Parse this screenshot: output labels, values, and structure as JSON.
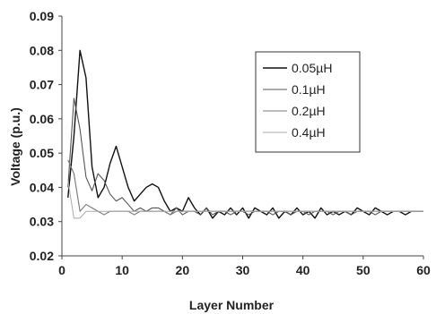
{
  "chart_data": {
    "type": "line",
    "xlabel": "Layer Number",
    "ylabel": "Voltage (p.u.)",
    "xlim": [
      0,
      60
    ],
    "ylim": [
      0.02,
      0.09
    ],
    "xticks": [
      "0",
      "10",
      "20",
      "30",
      "40",
      "50",
      "60"
    ],
    "yticks": [
      "0.02",
      "0.03",
      "0.04",
      "0.05",
      "0.06",
      "0.07",
      "0.08",
      "0.09"
    ],
    "grid": false,
    "legend_position": "top-right",
    "series": [
      {
        "name": "0.05µH",
        "color": "#111111",
        "x": [
          1,
          2,
          3,
          4,
          5,
          6,
          7,
          8,
          9,
          10,
          11,
          12,
          13,
          14,
          15,
          16,
          17,
          18,
          19,
          20,
          21,
          22,
          23,
          24,
          25,
          26,
          27,
          28,
          29,
          30,
          31,
          32,
          33,
          34,
          35,
          36,
          37,
          38,
          39,
          40,
          41,
          42,
          43,
          44,
          45,
          46,
          47,
          48,
          49,
          50,
          51,
          52,
          53,
          54,
          55,
          56,
          57,
          58,
          59,
          60
        ],
        "values": [
          0.037,
          0.055,
          0.08,
          0.072,
          0.046,
          0.037,
          0.04,
          0.047,
          0.052,
          0.046,
          0.04,
          0.036,
          0.038,
          0.04,
          0.041,
          0.04,
          0.036,
          0.033,
          0.034,
          0.033,
          0.037,
          0.034,
          0.032,
          0.034,
          0.031,
          0.033,
          0.032,
          0.034,
          0.032,
          0.034,
          0.031,
          0.034,
          0.033,
          0.032,
          0.034,
          0.031,
          0.033,
          0.032,
          0.034,
          0.032,
          0.033,
          0.031,
          0.034,
          0.032,
          0.033,
          0.032,
          0.033,
          0.032,
          0.034,
          0.033,
          0.032,
          0.034,
          0.033,
          0.032,
          0.033,
          0.033,
          0.032,
          0.033,
          0.033,
          0.033
        ]
      },
      {
        "name": "0.1µH",
        "color": "#555555",
        "x": [
          1,
          2,
          3,
          4,
          5,
          6,
          7,
          8,
          9,
          10,
          11,
          12,
          13,
          14,
          15,
          16,
          17,
          18,
          19,
          20,
          21,
          22,
          23,
          24,
          25,
          26,
          27,
          28,
          29,
          30,
          31,
          32,
          33,
          34,
          35,
          36,
          37,
          38,
          39,
          40,
          41,
          42,
          43,
          44,
          45,
          46,
          47,
          48,
          49,
          50,
          51,
          52,
          53,
          54,
          55,
          56,
          57,
          58,
          59,
          60
        ],
        "values": [
          0.04,
          0.066,
          0.057,
          0.043,
          0.039,
          0.044,
          0.042,
          0.038,
          0.036,
          0.037,
          0.035,
          0.033,
          0.034,
          0.033,
          0.034,
          0.034,
          0.033,
          0.032,
          0.034,
          0.032,
          0.033,
          0.033,
          0.032,
          0.034,
          0.032,
          0.033,
          0.033,
          0.032,
          0.033,
          0.033,
          0.032,
          0.033,
          0.033,
          0.033,
          0.032,
          0.033,
          0.033,
          0.032,
          0.033,
          0.033,
          0.032,
          0.033,
          0.033,
          0.033,
          0.032,
          0.033,
          0.033,
          0.032,
          0.033,
          0.033,
          0.033,
          0.032,
          0.033,
          0.033,
          0.033,
          0.033,
          0.033,
          0.033,
          0.033,
          0.033
        ]
      },
      {
        "name": "0.2µH",
        "color": "#777777",
        "x": [
          1,
          2,
          3,
          4,
          5,
          6,
          7,
          8,
          9,
          10,
          11,
          12,
          13,
          14,
          15,
          16,
          17,
          18,
          19,
          20,
          21,
          22,
          23,
          24,
          25,
          26,
          27,
          28,
          29,
          30,
          31,
          32,
          33,
          34,
          35,
          36,
          37,
          38,
          39,
          40,
          41,
          42,
          43,
          44,
          45,
          46,
          47,
          48,
          49,
          50,
          51,
          52,
          53,
          54,
          55,
          56,
          57,
          58,
          59,
          60
        ],
        "values": [
          0.048,
          0.044,
          0.033,
          0.035,
          0.034,
          0.033,
          0.032,
          0.033,
          0.033,
          0.033,
          0.033,
          0.032,
          0.033,
          0.033,
          0.033,
          0.033,
          0.033,
          0.032,
          0.033,
          0.033,
          0.033,
          0.033,
          0.033,
          0.033,
          0.033,
          0.033,
          0.033,
          0.033,
          0.033,
          0.033,
          0.033,
          0.033,
          0.033,
          0.033,
          0.033,
          0.033,
          0.033,
          0.033,
          0.033,
          0.033,
          0.033,
          0.033,
          0.033,
          0.033,
          0.033,
          0.033,
          0.033,
          0.033,
          0.033,
          0.033,
          0.033,
          0.033,
          0.033,
          0.033,
          0.033,
          0.033,
          0.033,
          0.033,
          0.033,
          0.033
        ]
      },
      {
        "name": "0.4µH",
        "color": "#aaaaaa",
        "x": [
          1,
          2,
          3,
          4,
          5,
          6,
          7,
          8,
          9,
          10,
          11,
          12,
          13,
          14,
          15,
          16,
          17,
          18,
          19,
          20,
          21,
          22,
          23,
          24,
          25,
          26,
          27,
          28,
          29,
          30,
          31,
          32,
          33,
          34,
          35,
          36,
          37,
          38,
          39,
          40,
          41,
          42,
          43,
          44,
          45,
          46,
          47,
          48,
          49,
          50,
          51,
          52,
          53,
          54,
          55,
          56,
          57,
          58,
          59,
          60
        ],
        "values": [
          0.042,
          0.031,
          0.031,
          0.033,
          0.033,
          0.033,
          0.033,
          0.033,
          0.033,
          0.033,
          0.033,
          0.033,
          0.033,
          0.033,
          0.033,
          0.033,
          0.033,
          0.033,
          0.033,
          0.033,
          0.033,
          0.033,
          0.033,
          0.033,
          0.033,
          0.033,
          0.033,
          0.033,
          0.033,
          0.033,
          0.033,
          0.033,
          0.033,
          0.033,
          0.033,
          0.033,
          0.033,
          0.033,
          0.033,
          0.033,
          0.033,
          0.033,
          0.033,
          0.033,
          0.033,
          0.033,
          0.033,
          0.033,
          0.033,
          0.033,
          0.033,
          0.033,
          0.033,
          0.033,
          0.033,
          0.033,
          0.033,
          0.033,
          0.033,
          0.033
        ]
      }
    ]
  }
}
